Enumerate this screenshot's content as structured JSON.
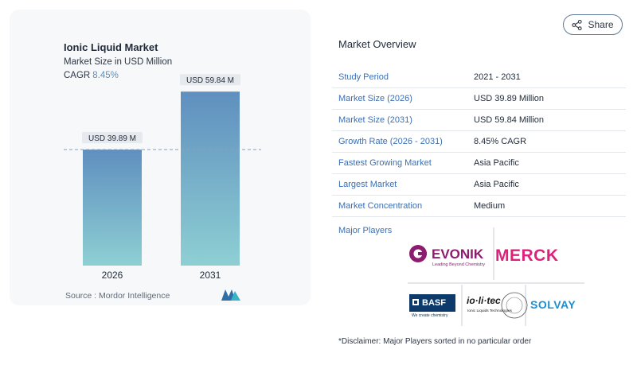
{
  "chart": {
    "title": "Ionic Liquid Market",
    "subtitle": "Market Size in USD Million",
    "cagr_label": "CAGR",
    "cagr_value": "8.45%",
    "source": "Source :  Mordor Intelligence"
  },
  "chart_data": {
    "type": "bar",
    "categories": [
      "2026",
      "2031"
    ],
    "values": [
      39.89,
      59.84
    ],
    "data_labels": [
      "USD 39.89 M",
      "USD 59.84 M"
    ],
    "title": "Ionic Liquid Market",
    "subtitle": "Market Size in USD Million",
    "xlabel": "",
    "ylabel": "",
    "reference_line": 39.89,
    "ylim": [
      0,
      64
    ],
    "grid": false,
    "colors": {
      "bar_top": "#5f8fbf",
      "bar_bottom": "#8ecfd3"
    }
  },
  "share": {
    "label": "Share",
    "icon": "share-icon"
  },
  "overview": {
    "title": "Market Overview",
    "rows": [
      {
        "label": "Study Period",
        "value": "2021 - 2031"
      },
      {
        "label": "Market Size (2026)",
        "value": "USD 39.89 Million"
      },
      {
        "label": "Market Size (2031)",
        "value": "USD 59.84 Million"
      },
      {
        "label": "Growth Rate (2026 - 2031)",
        "value": "8.45% CAGR"
      },
      {
        "label": "Fastest Growing Market",
        "value": "Asia Pacific"
      },
      {
        "label": "Largest Market",
        "value": "Asia Pacific"
      },
      {
        "label": "Market Concentration",
        "value": "Medium"
      }
    ],
    "players_title": "Major Players",
    "players": [
      {
        "name": "EVONIK",
        "tagline": "Leading Beyond Chemistry"
      },
      {
        "name": "MERCK"
      },
      {
        "name": "BASF",
        "tagline": "We create chemistry"
      },
      {
        "name": "io·li·tec",
        "tagline": "Ionic Liquids Technologies"
      },
      {
        "name": "SOLVAY"
      }
    ],
    "disclaimer": "*Disclaimer: Major Players sorted in no particular order"
  },
  "colors": {
    "accent": "#3d6fb0",
    "evonik": "#8c1d6e",
    "merck": "#e0217b",
    "basf": "#0b3a6b",
    "solvay": "#1d8fd0"
  }
}
